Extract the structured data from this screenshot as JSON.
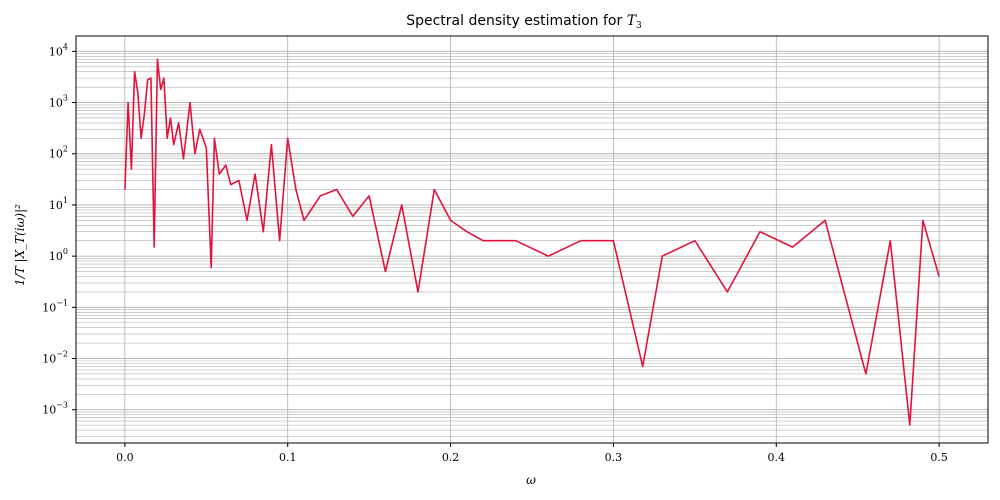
{
  "chart_data": {
    "type": "line",
    "title": "Spectral density estimation for ",
    "title_math": "T",
    "title_math_sub": "3",
    "xlabel": "ω",
    "ylabel": "1/T |X_T(iω)|²",
    "xlim": [
      -0.03,
      0.53
    ],
    "ylim_log10": [
      -3.65,
      4.3
    ],
    "yscale": "log",
    "grid": true,
    "x_ticks": [
      0.0,
      0.1,
      0.2,
      0.3,
      0.4,
      0.5
    ],
    "x_tick_labels": [
      "0.0",
      "0.1",
      "0.2",
      "0.3",
      "0.4",
      "0.5"
    ],
    "y_tick_exponents": [
      -3,
      -2,
      -1,
      0,
      1,
      2,
      3,
      4
    ],
    "y_tick_base": "10",
    "series": [
      {
        "color": "#e0143c",
        "x": [
          0.0,
          0.002,
          0.004,
          0.006,
          0.008,
          0.01,
          0.012,
          0.014,
          0.016,
          0.018,
          0.02,
          0.022,
          0.024,
          0.026,
          0.028,
          0.03,
          0.033,
          0.036,
          0.04,
          0.043,
          0.046,
          0.05,
          0.053,
          0.055,
          0.058,
          0.062,
          0.065,
          0.07,
          0.075,
          0.08,
          0.085,
          0.09,
          0.095,
          0.1,
          0.105,
          0.11,
          0.12,
          0.13,
          0.14,
          0.15,
          0.16,
          0.17,
          0.18,
          0.19,
          0.2,
          0.21,
          0.22,
          0.24,
          0.26,
          0.28,
          0.3,
          0.318,
          0.33,
          0.35,
          0.37,
          0.39,
          0.41,
          0.43,
          0.455,
          0.47,
          0.482,
          0.49,
          0.5
        ],
        "y": [
          20,
          1000,
          50,
          4000,
          1500,
          200,
          600,
          2800,
          3000,
          1.5,
          7000,
          1800,
          3000,
          200,
          500,
          150,
          400,
          80,
          1000,
          100,
          300,
          130,
          0.6,
          200,
          40,
          60,
          25,
          30,
          5,
          40,
          3,
          150,
          2,
          200,
          20,
          5,
          15,
          20,
          6,
          15,
          0.5,
          10,
          0.2,
          20,
          5,
          3,
          2,
          2,
          1,
          2,
          2,
          0.007,
          1,
          2,
          0.2,
          3,
          1.5,
          5,
          0.005,
          2,
          0.0005,
          5,
          0.4
        ]
      }
    ]
  }
}
